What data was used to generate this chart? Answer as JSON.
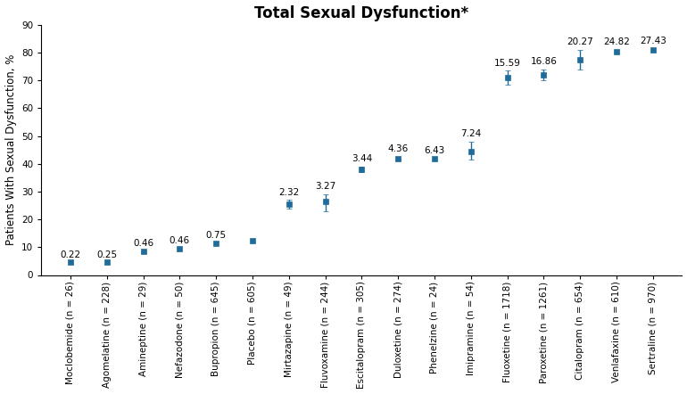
{
  "title": "Total Sexual Dysfunction*",
  "ylabel": "Patients With Sexual Dysfunction, %",
  "ylim": [
    0,
    90
  ],
  "yticks": [
    0,
    10,
    20,
    30,
    40,
    50,
    60,
    70,
    80,
    90
  ],
  "categories": [
    "Moclobemide (n = 26)",
    "Agomelatine (n = 228)",
    "Amineptine (n = 29)",
    "Nefazodone (n = 50)",
    "Bupropion (n = 645)",
    "Placebo (n = 605)",
    "Mirtazapine (n = 49)",
    "Fluvoxamine (n = 244)",
    "Escitalopram (n = 305)",
    "Duloxetine (n = 274)",
    "Phenelzine (n = 24)",
    "Imipramine (n = 54)",
    "Fluoxetine (n = 1718)",
    "Paroxetine (n = 1261)",
    "Citalopram (n = 654)",
    "Venlafaxine (n = 610)",
    "Sertraline (n = 970)"
  ],
  "values": [
    4.5,
    4.5,
    8.5,
    9.5,
    11.5,
    12.5,
    25.5,
    26.5,
    38.0,
    42.0,
    42.0,
    44.5,
    71.0,
    72.0,
    77.5,
    80.5,
    81.0
  ],
  "err_low": [
    0.0,
    0.0,
    0.0,
    0.0,
    0.0,
    0.0,
    1.5,
    3.5,
    1.0,
    0.5,
    0.0,
    3.0,
    2.5,
    2.0,
    3.5,
    0.5,
    0.5
  ],
  "err_high": [
    0.0,
    0.0,
    0.0,
    0.0,
    0.0,
    0.0,
    1.5,
    2.5,
    1.0,
    0.5,
    0.0,
    3.5,
    2.5,
    2.0,
    3.5,
    0.5,
    0.5
  ],
  "labels": [
    "0.22",
    "0.25",
    "0.46",
    "0.46",
    "0.75",
    "",
    "2.32",
    "3.27",
    "3.44",
    "4.36",
    "6.43",
    "7.24",
    "15.59",
    "16.86",
    "20.27",
    "24.82",
    "27.43"
  ],
  "marker_color": "#1F6B9A",
  "marker_size": 5,
  "background_color": "#ffffff",
  "title_fontsize": 12,
  "label_fontsize": 7.5,
  "tick_fontsize": 7.5,
  "ylabel_fontsize": 8.5
}
